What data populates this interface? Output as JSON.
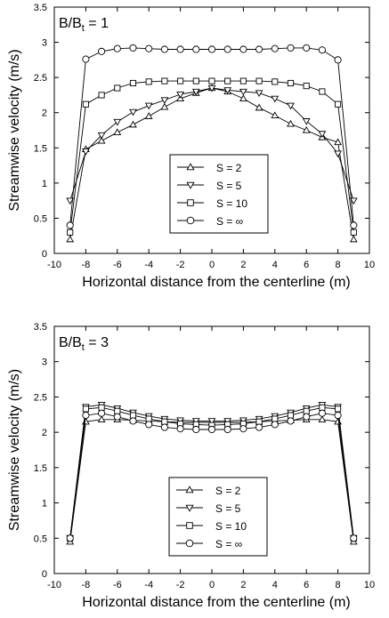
{
  "chart_data": [
    {
      "type": "line",
      "panel_label": "B/B",
      "panel_label_sub": "t",
      "panel_label_value": " = 1",
      "xlabel": "Horizontal distance from the centerline (m)",
      "ylabel": "Streamwise velocity (m/s)",
      "xlim": [
        -10,
        10
      ],
      "ylim": [
        0,
        3.5
      ],
      "xticks": [
        "-10",
        "-8",
        "-6",
        "-4",
        "-2",
        "0",
        "2",
        "4",
        "6",
        "8",
        "10"
      ],
      "yticks": [
        "0",
        "0.5",
        "1",
        "1.5",
        "2",
        "2.5",
        "3",
        "3.5"
      ],
      "grid": false,
      "legend_position": "bottom-center",
      "series": [
        {
          "name": "S = 2",
          "marker": "triangle-up",
          "x": [
            -9,
            -8,
            -7,
            -6,
            -5,
            -4,
            -3,
            -2,
            -1,
            0,
            1,
            2,
            3,
            4,
            5,
            6,
            7,
            8,
            9
          ],
          "y": [
            0.2,
            1.48,
            1.6,
            1.72,
            1.83,
            1.95,
            2.08,
            2.2,
            2.28,
            2.35,
            2.3,
            2.2,
            2.07,
            1.96,
            1.84,
            1.75,
            1.65,
            1.58,
            0.2
          ]
        },
        {
          "name": "S = 5",
          "marker": "triangle-down",
          "x": [
            -9,
            -8,
            -7,
            -6,
            -5,
            -4,
            -3,
            -2,
            -1,
            0,
            1,
            2,
            3,
            4,
            5,
            6,
            7,
            8,
            9
          ],
          "y": [
            0.75,
            1.45,
            1.68,
            1.87,
            2.01,
            2.1,
            2.18,
            2.26,
            2.3,
            2.35,
            2.32,
            2.3,
            2.28,
            2.2,
            2.1,
            1.88,
            1.7,
            1.42,
            0.75
          ]
        },
        {
          "name": "S = 10",
          "marker": "square",
          "x": [
            -9,
            -8,
            -7,
            -6,
            -5,
            -4,
            -3,
            -2,
            -1,
            0,
            1,
            2,
            3,
            4,
            5,
            6,
            7,
            8,
            9
          ],
          "y": [
            0.3,
            2.12,
            2.25,
            2.35,
            2.42,
            2.44,
            2.45,
            2.45,
            2.45,
            2.45,
            2.45,
            2.45,
            2.45,
            2.44,
            2.42,
            2.38,
            2.3,
            2.12,
            0.3
          ]
        },
        {
          "name": "S = ∞",
          "marker": "circle",
          "x": [
            -9,
            -8,
            -7,
            -6,
            -5,
            -4,
            -3,
            -2,
            -1,
            0,
            1,
            2,
            3,
            4,
            5,
            6,
            7,
            8,
            9
          ],
          "y": [
            0.4,
            2.76,
            2.87,
            2.91,
            2.92,
            2.91,
            2.9,
            2.9,
            2.9,
            2.9,
            2.9,
            2.9,
            2.9,
            2.91,
            2.92,
            2.92,
            2.89,
            2.75,
            0.4
          ]
        }
      ]
    },
    {
      "type": "line",
      "panel_label": "B/B",
      "panel_label_sub": "t",
      "panel_label_value": " = 3",
      "xlabel": "Horizontal distance from the centerline (m)",
      "ylabel": "Streamwise velocity (m/s)",
      "xlim": [
        -10,
        10
      ],
      "ylim": [
        0,
        3.5
      ],
      "xticks": [
        "-10",
        "-8",
        "-6",
        "-4",
        "-2",
        "0",
        "2",
        "4",
        "6",
        "8",
        "10"
      ],
      "yticks": [
        "0",
        "0.5",
        "1",
        "1.5",
        "2",
        "2.5",
        "3",
        "3.5"
      ],
      "grid": false,
      "legend_position": "bottom-center",
      "series": [
        {
          "name": "S = 2",
          "marker": "triangle-up",
          "x": [
            -9,
            -8,
            -7,
            -6,
            -5,
            -4,
            -3,
            -2,
            -1,
            0,
            1,
            2,
            3,
            4,
            5,
            6,
            7,
            8,
            9
          ],
          "y": [
            0.45,
            2.15,
            2.18,
            2.18,
            2.17,
            2.16,
            2.15,
            2.14,
            2.14,
            2.14,
            2.14,
            2.14,
            2.15,
            2.16,
            2.17,
            2.18,
            2.18,
            2.15,
            0.45
          ]
        },
        {
          "name": "S = 5",
          "marker": "triangle-down",
          "x": [
            -9,
            -8,
            -7,
            -6,
            -5,
            -4,
            -3,
            -2,
            -1,
            0,
            1,
            2,
            3,
            4,
            5,
            6,
            7,
            8,
            9
          ],
          "y": [
            0.5,
            2.36,
            2.39,
            2.34,
            2.28,
            2.23,
            2.19,
            2.17,
            2.16,
            2.16,
            2.16,
            2.17,
            2.19,
            2.23,
            2.28,
            2.34,
            2.39,
            2.36,
            0.5
          ]
        },
        {
          "name": "S = 10",
          "marker": "square",
          "x": [
            -9,
            -8,
            -7,
            -6,
            -5,
            -4,
            -3,
            -2,
            -1,
            0,
            1,
            2,
            3,
            4,
            5,
            6,
            7,
            8,
            9
          ],
          "y": [
            0.5,
            2.33,
            2.35,
            2.3,
            2.24,
            2.19,
            2.15,
            2.12,
            2.11,
            2.1,
            2.11,
            2.12,
            2.15,
            2.19,
            2.24,
            2.3,
            2.35,
            2.33,
            0.5
          ]
        },
        {
          "name": "S = ∞",
          "marker": "circle",
          "x": [
            -9,
            -8,
            -7,
            -6,
            -5,
            -4,
            -3,
            -2,
            -1,
            0,
            1,
            2,
            3,
            4,
            5,
            6,
            7,
            8,
            9
          ],
          "y": [
            0.5,
            2.24,
            2.27,
            2.22,
            2.16,
            2.11,
            2.07,
            2.05,
            2.04,
            2.04,
            2.04,
            2.05,
            2.07,
            2.11,
            2.16,
            2.22,
            2.27,
            2.24,
            0.5
          ]
        }
      ]
    }
  ]
}
